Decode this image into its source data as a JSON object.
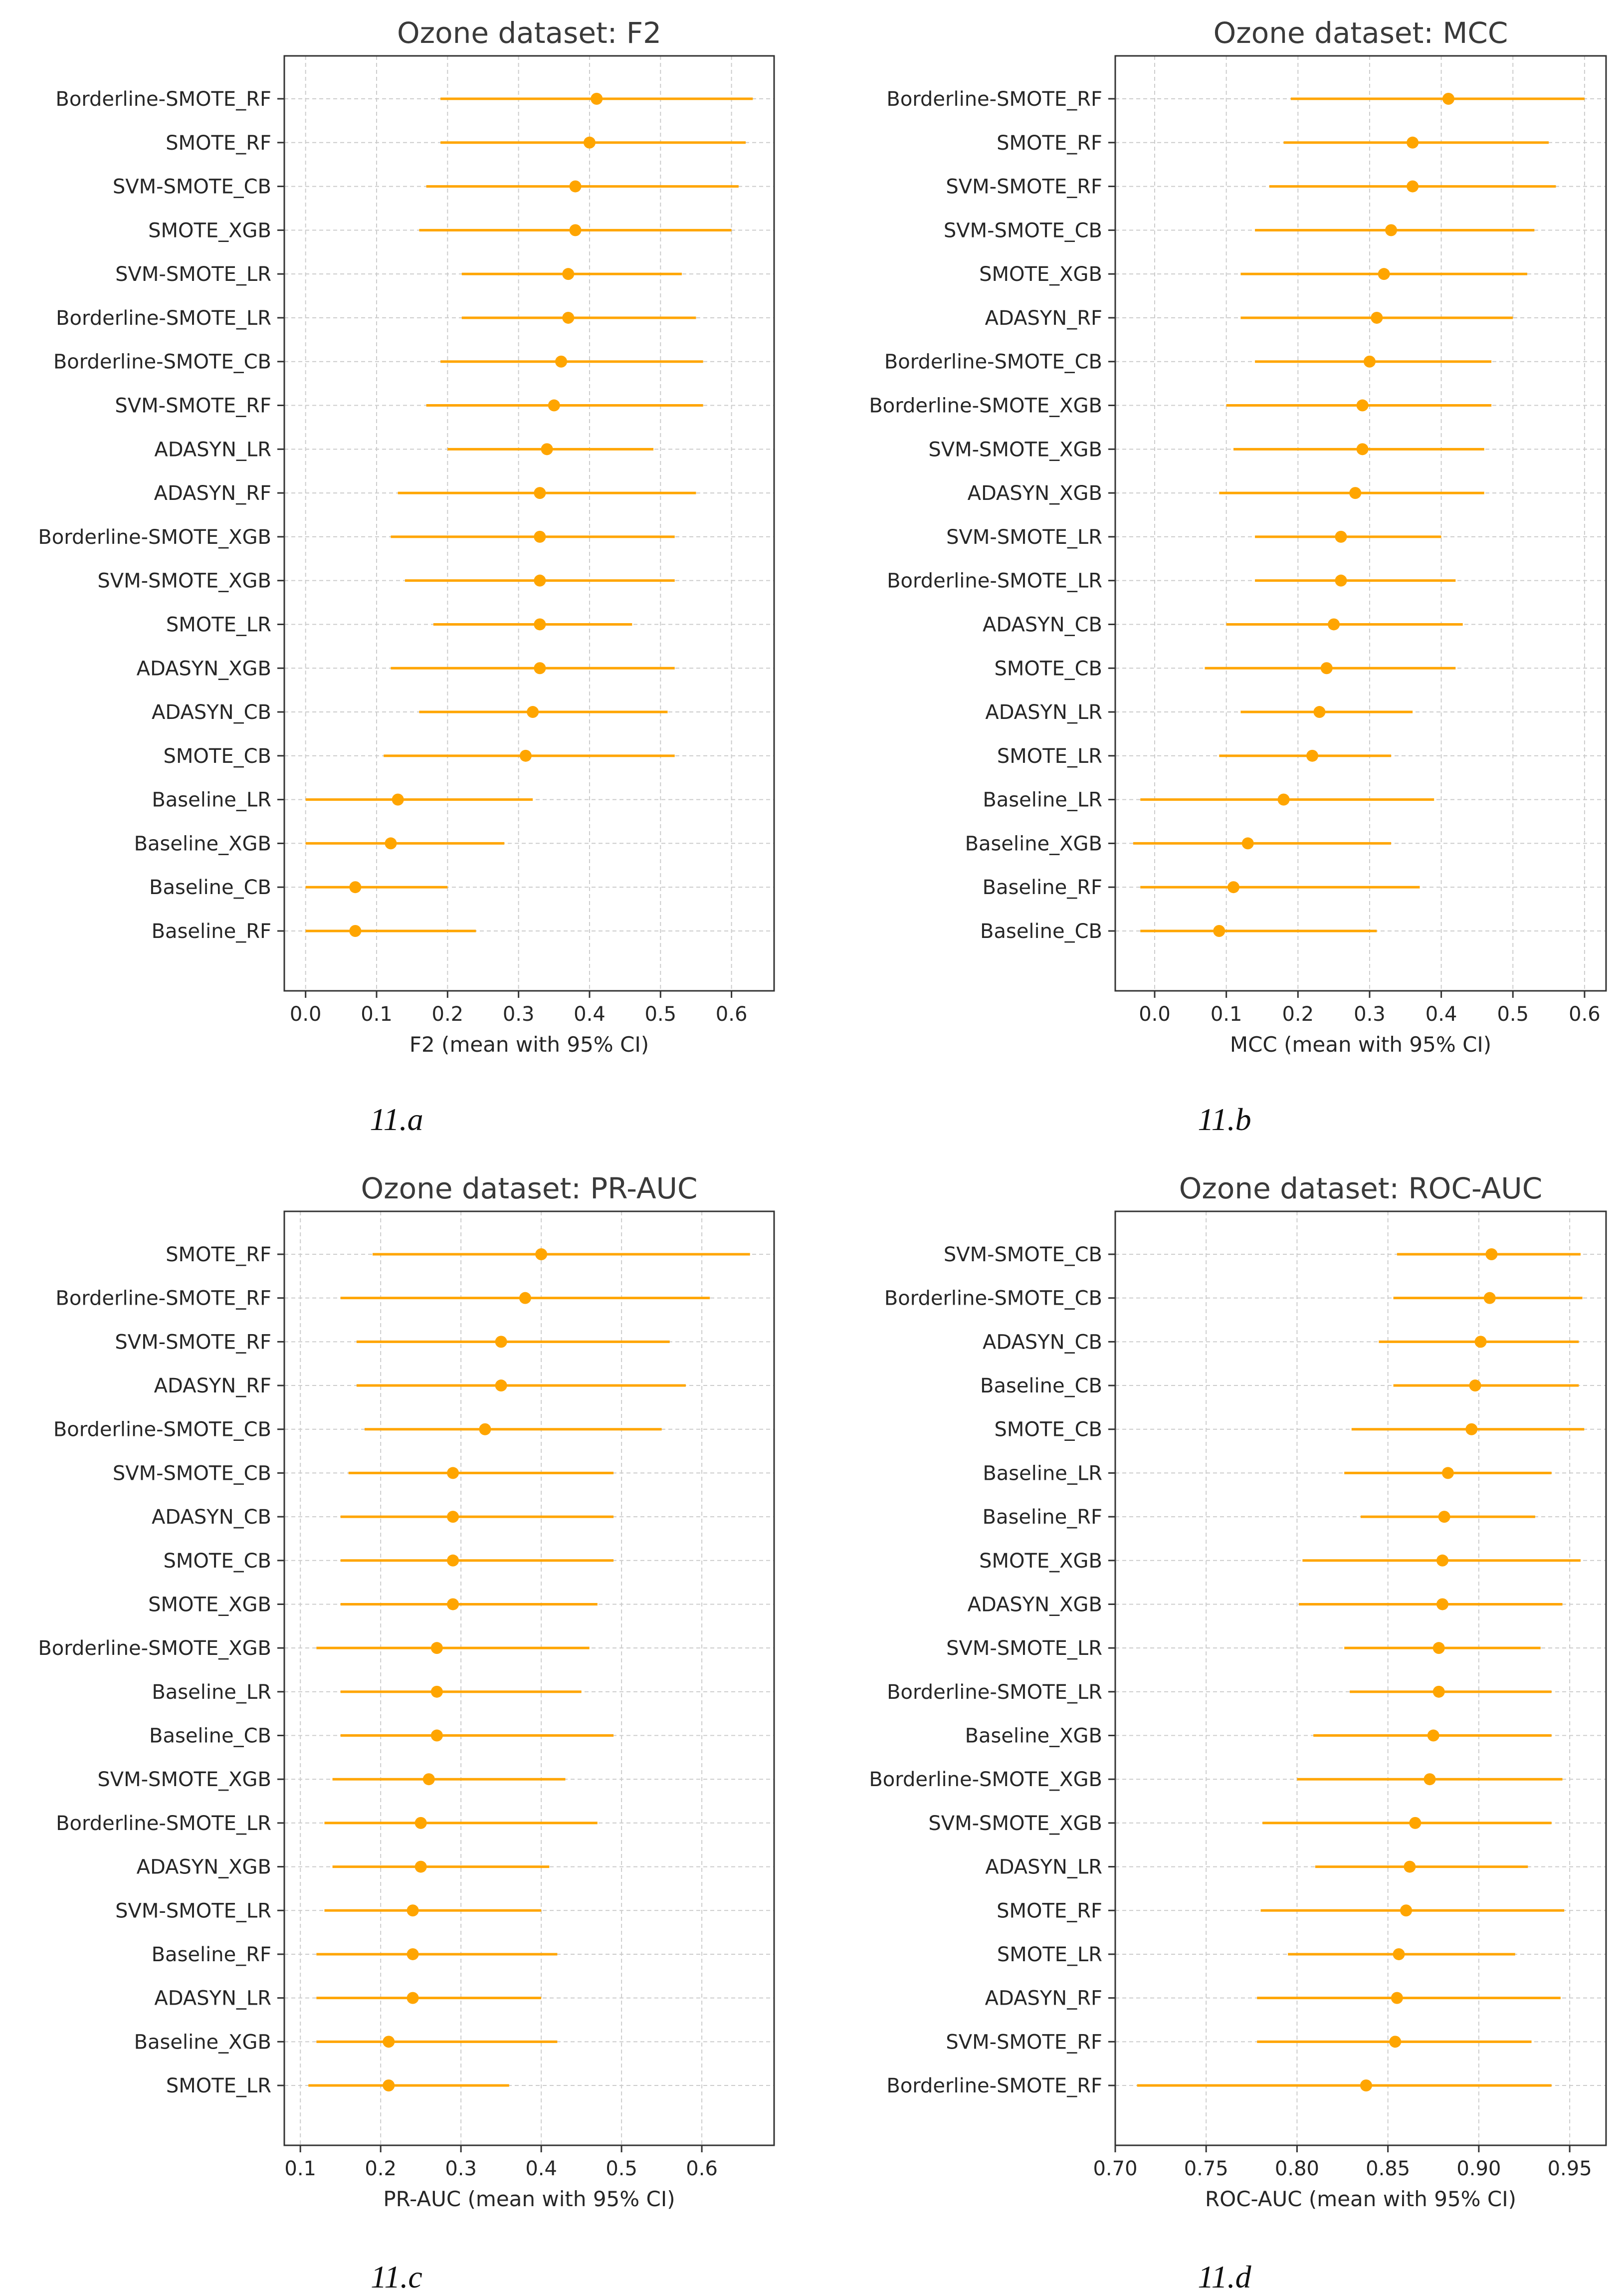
{
  "colors": {
    "marker": "#ffa500",
    "axis": "#333333",
    "grid": "#cccccc"
  },
  "chart_data": [
    {
      "type": "forest",
      "title": "Ozone dataset: F2",
      "xlabel": "F2 (mean with 95% CI)",
      "caption": "11.a",
      "xlim": [
        -0.03,
        0.66
      ],
      "xticks": [
        0.0,
        0.1,
        0.2,
        0.3,
        0.4,
        0.5,
        0.6
      ],
      "xtick_labels": [
        "0.0",
        "0.1",
        "0.2",
        "0.3",
        "0.4",
        "0.5",
        "0.6"
      ],
      "grid": true,
      "rows": [
        {
          "label": "Borderline-SMOTE_RF",
          "mean": 0.41,
          "lo": 0.19,
          "hi": 0.63
        },
        {
          "label": "SMOTE_RF",
          "mean": 0.4,
          "lo": 0.19,
          "hi": 0.62
        },
        {
          "label": "SVM-SMOTE_CB",
          "mean": 0.38,
          "lo": 0.17,
          "hi": 0.61
        },
        {
          "label": "SMOTE_XGB",
          "mean": 0.38,
          "lo": 0.16,
          "hi": 0.6
        },
        {
          "label": "SVM-SMOTE_LR",
          "mean": 0.37,
          "lo": 0.22,
          "hi": 0.53
        },
        {
          "label": "Borderline-SMOTE_LR",
          "mean": 0.37,
          "lo": 0.22,
          "hi": 0.55
        },
        {
          "label": "Borderline-SMOTE_CB",
          "mean": 0.36,
          "lo": 0.19,
          "hi": 0.56
        },
        {
          "label": "SVM-SMOTE_RF",
          "mean": 0.35,
          "lo": 0.17,
          "hi": 0.56
        },
        {
          "label": "ADASYN_LR",
          "mean": 0.34,
          "lo": 0.2,
          "hi": 0.49
        },
        {
          "label": "ADASYN_RF",
          "mean": 0.33,
          "lo": 0.13,
          "hi": 0.55
        },
        {
          "label": "Borderline-SMOTE_XGB",
          "mean": 0.33,
          "lo": 0.12,
          "hi": 0.52
        },
        {
          "label": "SVM-SMOTE_XGB",
          "mean": 0.33,
          "lo": 0.14,
          "hi": 0.52
        },
        {
          "label": "SMOTE_LR",
          "mean": 0.33,
          "lo": 0.18,
          "hi": 0.46
        },
        {
          "label": "ADASYN_XGB",
          "mean": 0.33,
          "lo": 0.12,
          "hi": 0.52
        },
        {
          "label": "ADASYN_CB",
          "mean": 0.32,
          "lo": 0.16,
          "hi": 0.51
        },
        {
          "label": "SMOTE_CB",
          "mean": 0.31,
          "lo": 0.11,
          "hi": 0.52
        },
        {
          "label": "Baseline_LR",
          "mean": 0.13,
          "lo": 0.0,
          "hi": 0.32
        },
        {
          "label": "Baseline_XGB",
          "mean": 0.12,
          "lo": 0.0,
          "hi": 0.28
        },
        {
          "label": "Baseline_CB",
          "mean": 0.07,
          "lo": 0.0,
          "hi": 0.2
        },
        {
          "label": "Baseline_RF",
          "mean": 0.07,
          "lo": 0.0,
          "hi": 0.24
        }
      ]
    },
    {
      "type": "forest",
      "title": "Ozone dataset: MCC",
      "xlabel": "MCC (mean with 95% CI)",
      "caption": "11.b",
      "xlim": [
        -0.055,
        0.63
      ],
      "xticks": [
        0.0,
        0.1,
        0.2,
        0.3,
        0.4,
        0.5,
        0.6
      ],
      "xtick_labels": [
        "0.0",
        "0.1",
        "0.2",
        "0.3",
        "0.4",
        "0.5",
        "0.6"
      ],
      "grid": true,
      "rows": [
        {
          "label": "Borderline-SMOTE_RF",
          "mean": 0.41,
          "lo": 0.19,
          "hi": 0.6
        },
        {
          "label": "SMOTE_RF",
          "mean": 0.36,
          "lo": 0.18,
          "hi": 0.55
        },
        {
          "label": "SVM-SMOTE_RF",
          "mean": 0.36,
          "lo": 0.16,
          "hi": 0.56
        },
        {
          "label": "SVM-SMOTE_CB",
          "mean": 0.33,
          "lo": 0.14,
          "hi": 0.53
        },
        {
          "label": "SMOTE_XGB",
          "mean": 0.32,
          "lo": 0.12,
          "hi": 0.52
        },
        {
          "label": "ADASYN_RF",
          "mean": 0.31,
          "lo": 0.12,
          "hi": 0.5
        },
        {
          "label": "Borderline-SMOTE_CB",
          "mean": 0.3,
          "lo": 0.14,
          "hi": 0.47
        },
        {
          "label": "Borderline-SMOTE_XGB",
          "mean": 0.29,
          "lo": 0.1,
          "hi": 0.47
        },
        {
          "label": "SVM-SMOTE_XGB",
          "mean": 0.29,
          "lo": 0.11,
          "hi": 0.46
        },
        {
          "label": "ADASYN_XGB",
          "mean": 0.28,
          "lo": 0.09,
          "hi": 0.46
        },
        {
          "label": "SVM-SMOTE_LR",
          "mean": 0.26,
          "lo": 0.14,
          "hi": 0.4
        },
        {
          "label": "Borderline-SMOTE_LR",
          "mean": 0.26,
          "lo": 0.14,
          "hi": 0.42
        },
        {
          "label": "ADASYN_CB",
          "mean": 0.25,
          "lo": 0.1,
          "hi": 0.43
        },
        {
          "label": "SMOTE_CB",
          "mean": 0.24,
          "lo": 0.07,
          "hi": 0.42
        },
        {
          "label": "ADASYN_LR",
          "mean": 0.23,
          "lo": 0.12,
          "hi": 0.36
        },
        {
          "label": "SMOTE_LR",
          "mean": 0.22,
          "lo": 0.09,
          "hi": 0.33
        },
        {
          "label": "Baseline_LR",
          "mean": 0.18,
          "lo": -0.02,
          "hi": 0.39
        },
        {
          "label": "Baseline_XGB",
          "mean": 0.13,
          "lo": -0.03,
          "hi": 0.33
        },
        {
          "label": "Baseline_RF",
          "mean": 0.11,
          "lo": -0.02,
          "hi": 0.37
        },
        {
          "label": "Baseline_CB",
          "mean": 0.09,
          "lo": -0.02,
          "hi": 0.31
        }
      ]
    },
    {
      "type": "forest",
      "title": "Ozone dataset: PR-AUC",
      "xlabel": "PR-AUC (mean with 95% CI)",
      "caption": "11.c",
      "xlim": [
        0.08,
        0.69
      ],
      "xticks": [
        0.1,
        0.2,
        0.3,
        0.4,
        0.5,
        0.6
      ],
      "xtick_labels": [
        "0.1",
        "0.2",
        "0.3",
        "0.4",
        "0.5",
        "0.6"
      ],
      "grid": true,
      "rows": [
        {
          "label": "SMOTE_RF",
          "mean": 0.4,
          "lo": 0.19,
          "hi": 0.66
        },
        {
          "label": "Borderline-SMOTE_RF",
          "mean": 0.38,
          "lo": 0.15,
          "hi": 0.61
        },
        {
          "label": "SVM-SMOTE_RF",
          "mean": 0.35,
          "lo": 0.17,
          "hi": 0.56
        },
        {
          "label": "ADASYN_RF",
          "mean": 0.35,
          "lo": 0.17,
          "hi": 0.58
        },
        {
          "label": "Borderline-SMOTE_CB",
          "mean": 0.33,
          "lo": 0.18,
          "hi": 0.55
        },
        {
          "label": "SVM-SMOTE_CB",
          "mean": 0.29,
          "lo": 0.16,
          "hi": 0.49
        },
        {
          "label": "ADASYN_CB",
          "mean": 0.29,
          "lo": 0.15,
          "hi": 0.49
        },
        {
          "label": "SMOTE_CB",
          "mean": 0.29,
          "lo": 0.15,
          "hi": 0.49
        },
        {
          "label": "SMOTE_XGB",
          "mean": 0.29,
          "lo": 0.15,
          "hi": 0.47
        },
        {
          "label": "Borderline-SMOTE_XGB",
          "mean": 0.27,
          "lo": 0.12,
          "hi": 0.46
        },
        {
          "label": "Baseline_LR",
          "mean": 0.27,
          "lo": 0.15,
          "hi": 0.45
        },
        {
          "label": "Baseline_CB",
          "mean": 0.27,
          "lo": 0.15,
          "hi": 0.49
        },
        {
          "label": "SVM-SMOTE_XGB",
          "mean": 0.26,
          "lo": 0.14,
          "hi": 0.43
        },
        {
          "label": "Borderline-SMOTE_LR",
          "mean": 0.25,
          "lo": 0.13,
          "hi": 0.47
        },
        {
          "label": "ADASYN_XGB",
          "mean": 0.25,
          "lo": 0.14,
          "hi": 0.41
        },
        {
          "label": "SVM-SMOTE_LR",
          "mean": 0.24,
          "lo": 0.13,
          "hi": 0.4
        },
        {
          "label": "Baseline_RF",
          "mean": 0.24,
          "lo": 0.12,
          "hi": 0.42
        },
        {
          "label": "ADASYN_LR",
          "mean": 0.24,
          "lo": 0.12,
          "hi": 0.4
        },
        {
          "label": "Baseline_XGB",
          "mean": 0.21,
          "lo": 0.12,
          "hi": 0.42
        },
        {
          "label": "SMOTE_LR",
          "mean": 0.21,
          "lo": 0.11,
          "hi": 0.36
        }
      ]
    },
    {
      "type": "forest",
      "title": "Ozone dataset: ROC-AUC",
      "xlabel": "ROC-AUC (mean with 95% CI)",
      "caption": "11.d",
      "xlim": [
        0.7,
        0.97
      ],
      "xticks": [
        0.7,
        0.75,
        0.8,
        0.85,
        0.9,
        0.95
      ],
      "xtick_labels": [
        "0.70",
        "0.75",
        "0.80",
        "0.85",
        "0.90",
        "0.95"
      ],
      "grid": true,
      "rows": [
        {
          "label": "SVM-SMOTE_CB",
          "mean": 0.907,
          "lo": 0.855,
          "hi": 0.956
        },
        {
          "label": "Borderline-SMOTE_CB",
          "mean": 0.906,
          "lo": 0.853,
          "hi": 0.957
        },
        {
          "label": "ADASYN_CB",
          "mean": 0.901,
          "lo": 0.845,
          "hi": 0.955
        },
        {
          "label": "Baseline_CB",
          "mean": 0.898,
          "lo": 0.853,
          "hi": 0.955
        },
        {
          "label": "SMOTE_CB",
          "mean": 0.896,
          "lo": 0.83,
          "hi": 0.958
        },
        {
          "label": "Baseline_LR",
          "mean": 0.883,
          "lo": 0.826,
          "hi": 0.94
        },
        {
          "label": "Baseline_RF",
          "mean": 0.881,
          "lo": 0.835,
          "hi": 0.931
        },
        {
          "label": "SMOTE_XGB",
          "mean": 0.88,
          "lo": 0.803,
          "hi": 0.956
        },
        {
          "label": "ADASYN_XGB",
          "mean": 0.88,
          "lo": 0.801,
          "hi": 0.946
        },
        {
          "label": "SVM-SMOTE_LR",
          "mean": 0.878,
          "lo": 0.826,
          "hi": 0.934
        },
        {
          "label": "Borderline-SMOTE_LR",
          "mean": 0.878,
          "lo": 0.829,
          "hi": 0.94
        },
        {
          "label": "Baseline_XGB",
          "mean": 0.875,
          "lo": 0.809,
          "hi": 0.94
        },
        {
          "label": "Borderline-SMOTE_XGB",
          "mean": 0.873,
          "lo": 0.8,
          "hi": 0.946
        },
        {
          "label": "SVM-SMOTE_XGB",
          "mean": 0.865,
          "lo": 0.781,
          "hi": 0.94
        },
        {
          "label": "ADASYN_LR",
          "mean": 0.862,
          "lo": 0.81,
          "hi": 0.927
        },
        {
          "label": "SMOTE_RF",
          "mean": 0.86,
          "lo": 0.78,
          "hi": 0.947
        },
        {
          "label": "SMOTE_LR",
          "mean": 0.856,
          "lo": 0.795,
          "hi": 0.92
        },
        {
          "label": "ADASYN_RF",
          "mean": 0.855,
          "lo": 0.778,
          "hi": 0.945
        },
        {
          "label": "SVM-SMOTE_RF",
          "mean": 0.854,
          "lo": 0.778,
          "hi": 0.929
        },
        {
          "label": "Borderline-SMOTE_RF",
          "mean": 0.838,
          "lo": 0.712,
          "hi": 0.94
        }
      ]
    }
  ]
}
